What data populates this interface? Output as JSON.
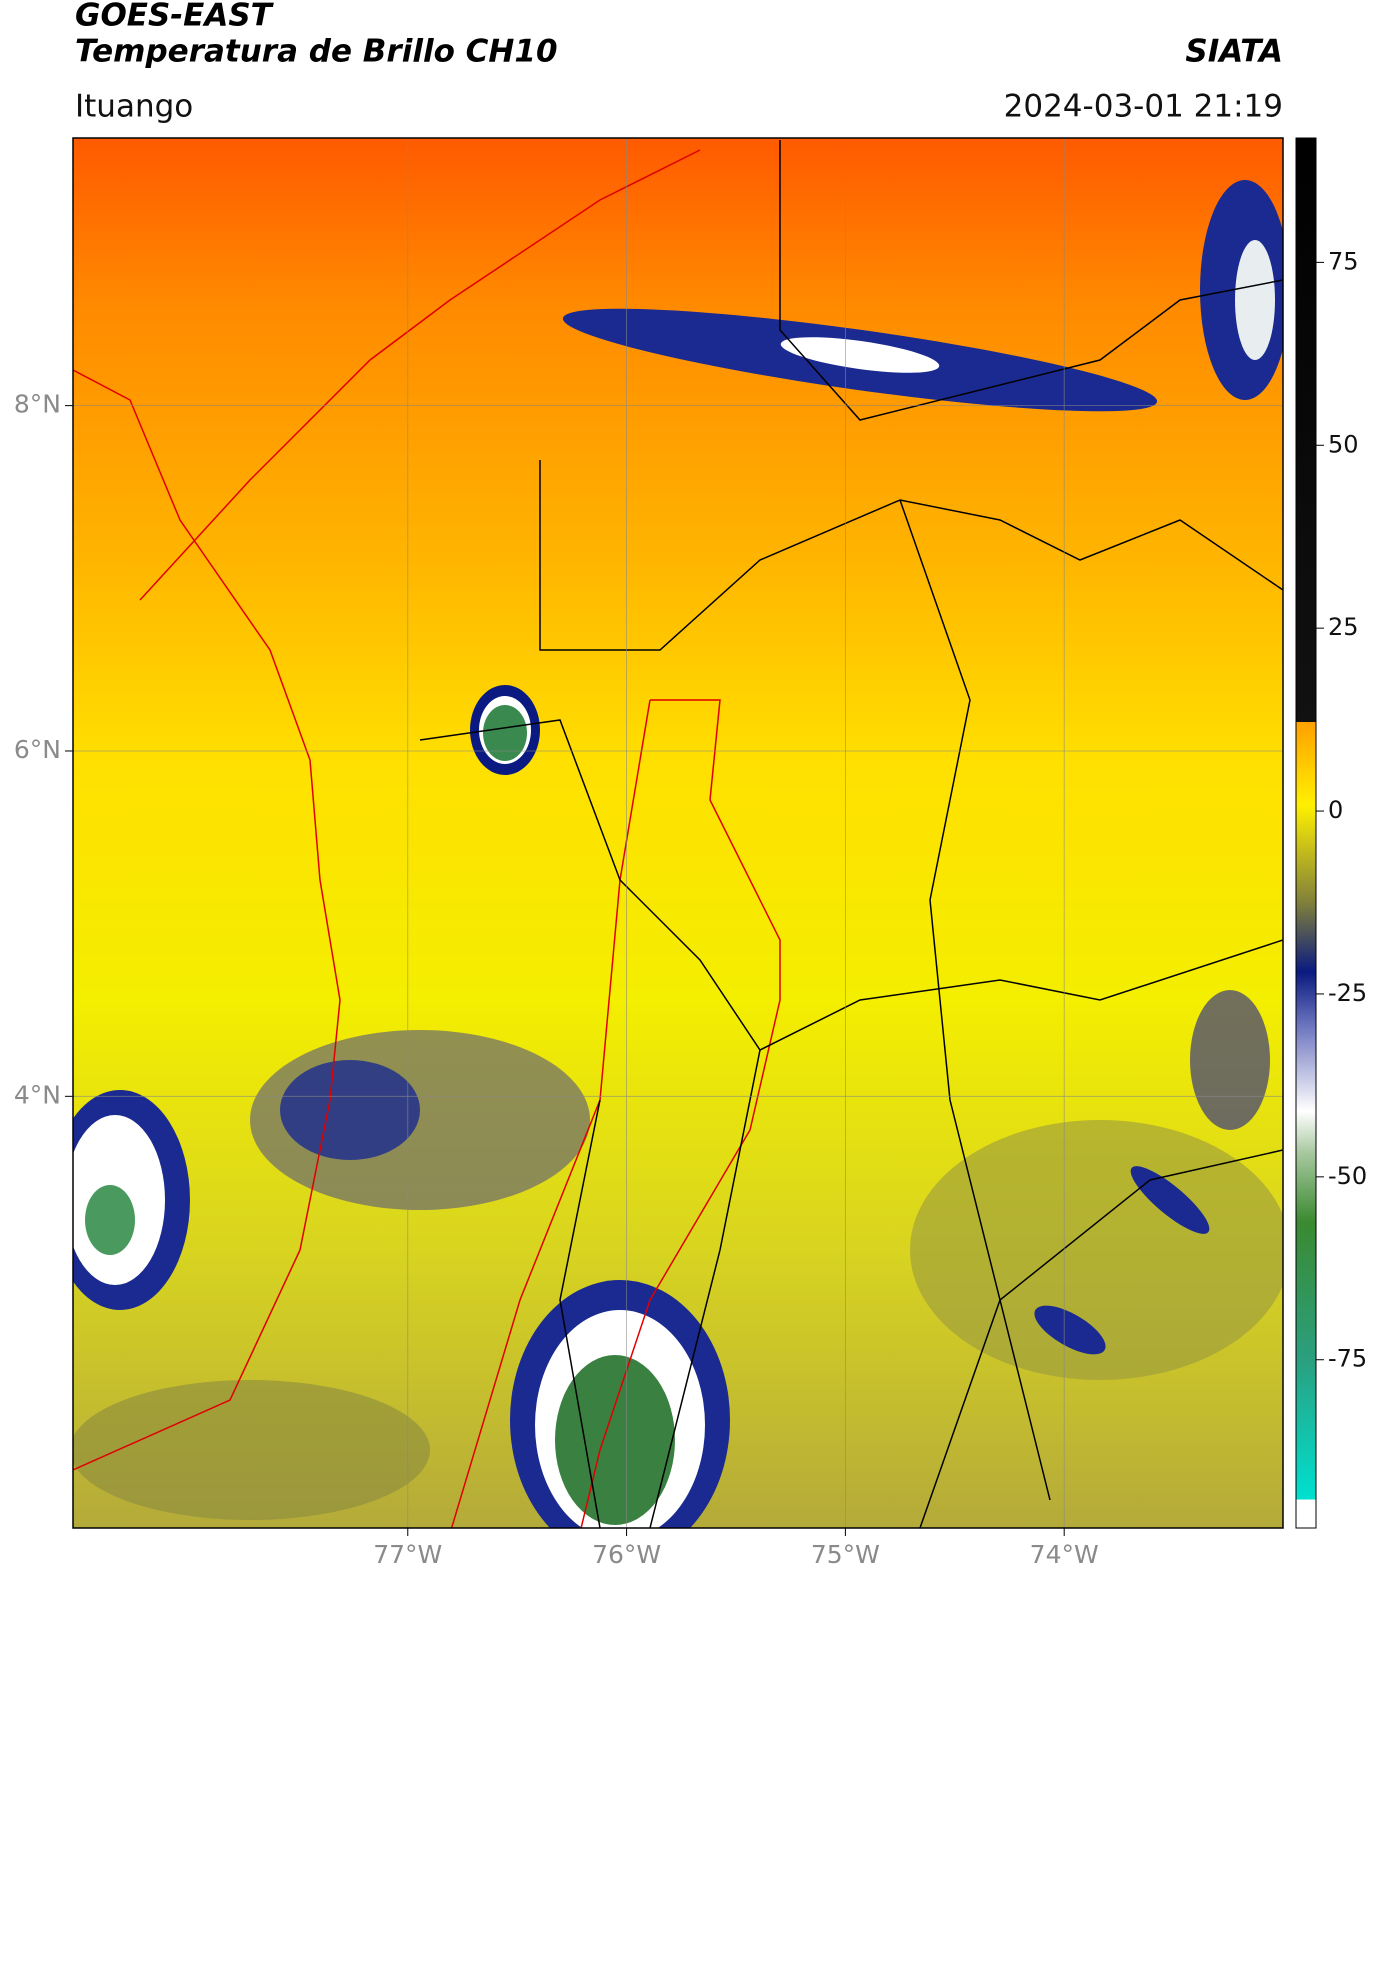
{
  "header": {
    "title": "GOES-EAST",
    "subtitle": "Temperatura de Brillo CH10",
    "location": "Ituango",
    "source": "SIATA",
    "datetime": "2024-03-01 21:19"
  },
  "map": {
    "xlim": [
      -78.53,
      -73.0
    ],
    "ylim": [
      1.5,
      9.55
    ],
    "xticks": [
      {
        "value": -77,
        "label": "77°W"
      },
      {
        "value": -76,
        "label": "76°W"
      },
      {
        "value": -75,
        "label": "75°W"
      },
      {
        "value": -74,
        "label": "74°W"
      }
    ],
    "yticks": [
      {
        "value": 8,
        "label": "8°N"
      },
      {
        "value": 6,
        "label": "6°N"
      },
      {
        "value": 4,
        "label": "4°N"
      }
    ]
  },
  "colorbar": {
    "lim": [
      -98,
      92
    ],
    "ticks": [
      75,
      50,
      25,
      0,
      -25,
      -50,
      -75
    ]
  }
}
